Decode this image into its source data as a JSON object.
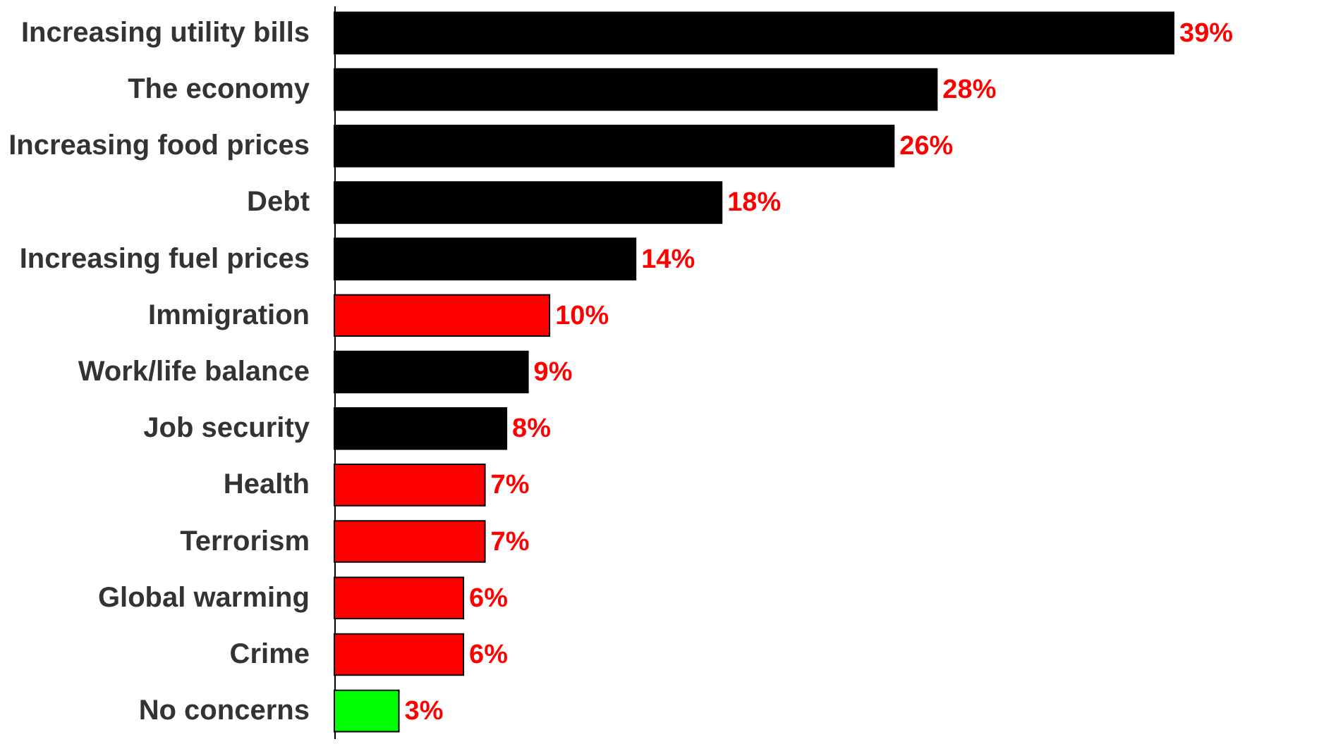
{
  "chart_data": {
    "type": "bar",
    "orientation": "horizontal",
    "data_labels": true,
    "categories": [
      "Increasing utility bills",
      "The economy",
      "Increasing food prices",
      "Debt",
      "Increasing fuel prices",
      "Immigration",
      "Work/life balance",
      "Job security",
      "Health",
      "Terrorism",
      "Global warming",
      "Crime",
      "No concerns"
    ],
    "values": [
      39,
      28,
      26,
      18,
      14,
      10,
      9,
      8,
      7,
      7,
      6,
      6,
      3
    ],
    "value_labels": [
      "39%",
      "28%",
      "26%",
      "18%",
      "14%",
      "10%",
      "9%",
      "8%",
      "7%",
      "7%",
      "6%",
      "6%",
      "3%"
    ],
    "colors": [
      "#000000",
      "#000000",
      "#000000",
      "#000000",
      "#000000",
      "#ff0000",
      "#000000",
      "#000000",
      "#ff0000",
      "#ff0000",
      "#ff0000",
      "#ff0000",
      "#00ff00"
    ]
  }
}
